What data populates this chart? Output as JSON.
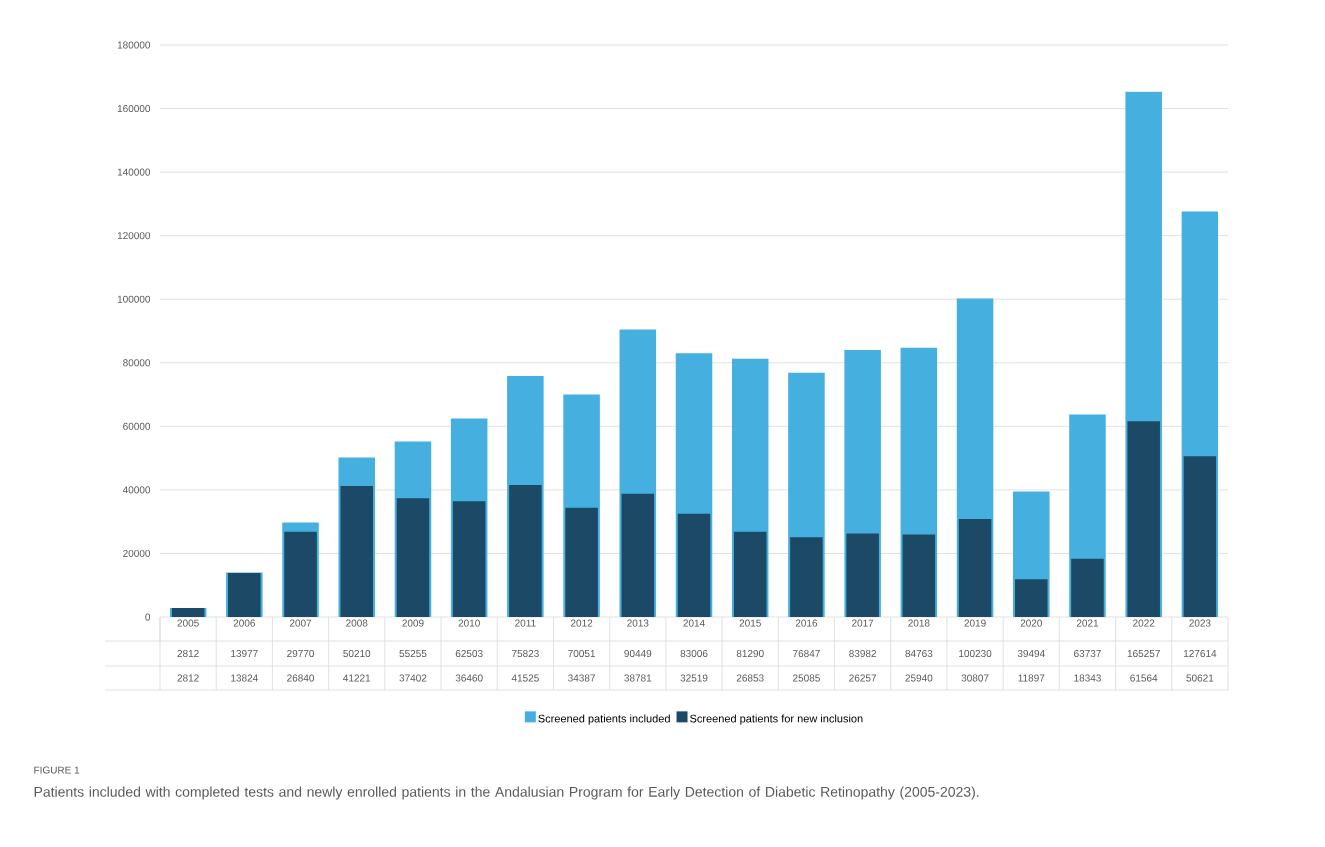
{
  "chart_data": {
    "type": "bar",
    "categories": [
      "2005",
      "2006",
      "2007",
      "2008",
      "2009",
      "2010",
      "2011",
      "2012",
      "2013",
      "2014",
      "2015",
      "2016",
      "2017",
      "2018",
      "2019",
      "2020",
      "2021",
      "2022",
      "2023"
    ],
    "series": [
      {
        "name": "Screened patients included",
        "color": "#45b0e0",
        "values": [
          2812,
          13977,
          29770,
          50210,
          55255,
          62503,
          75823,
          70051,
          90449,
          83006,
          81290,
          76847,
          83982,
          84763,
          100230,
          39494,
          63737,
          165257,
          127614
        ]
      },
      {
        "name": "Screened patients for new inclusion",
        "color": "#1c4966",
        "values": [
          2812,
          13824,
          26840,
          41221,
          37402,
          36460,
          41525,
          34387,
          38781,
          32519,
          26853,
          25085,
          26257,
          25940,
          30807,
          11897,
          18343,
          61564,
          50621
        ]
      }
    ],
    "ylim": [
      0,
      180000
    ],
    "yticks": [
      0,
      20000,
      40000,
      60000,
      80000,
      100000,
      120000,
      140000,
      160000,
      180000
    ],
    "grid": "y",
    "legend": "bottom",
    "data_labels": true,
    "annotations": [
      "FIGURE 1",
      "Patients included with completed tests and newly enrolled patients in the Andalusian Program for Early Detection of Diabetic Retinopathy (2005-2023)."
    ]
  }
}
